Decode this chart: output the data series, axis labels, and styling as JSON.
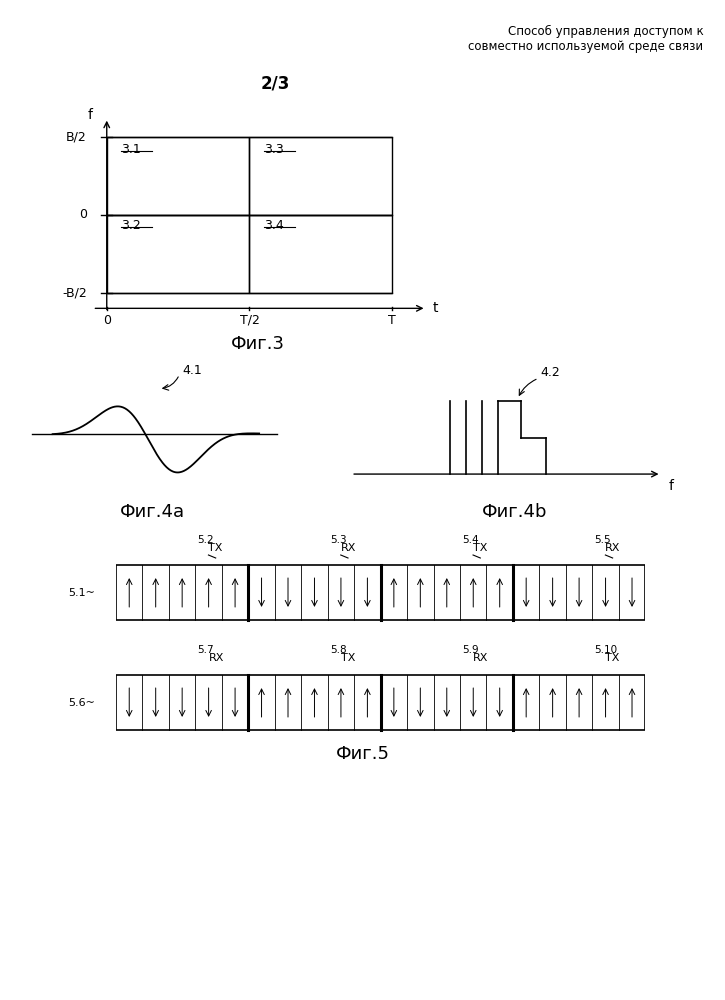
{
  "header_line1": "Способ управления доступом к",
  "header_line2": "совместно используемой среде связи",
  "page_label": "2/3",
  "fig3_title": "Фиг.3",
  "fig4a_title": "Фиг.4а",
  "fig4b_title": "Фиг.4b",
  "fig5_title": "Фиг.5",
  "bg_color": "#ffffff"
}
